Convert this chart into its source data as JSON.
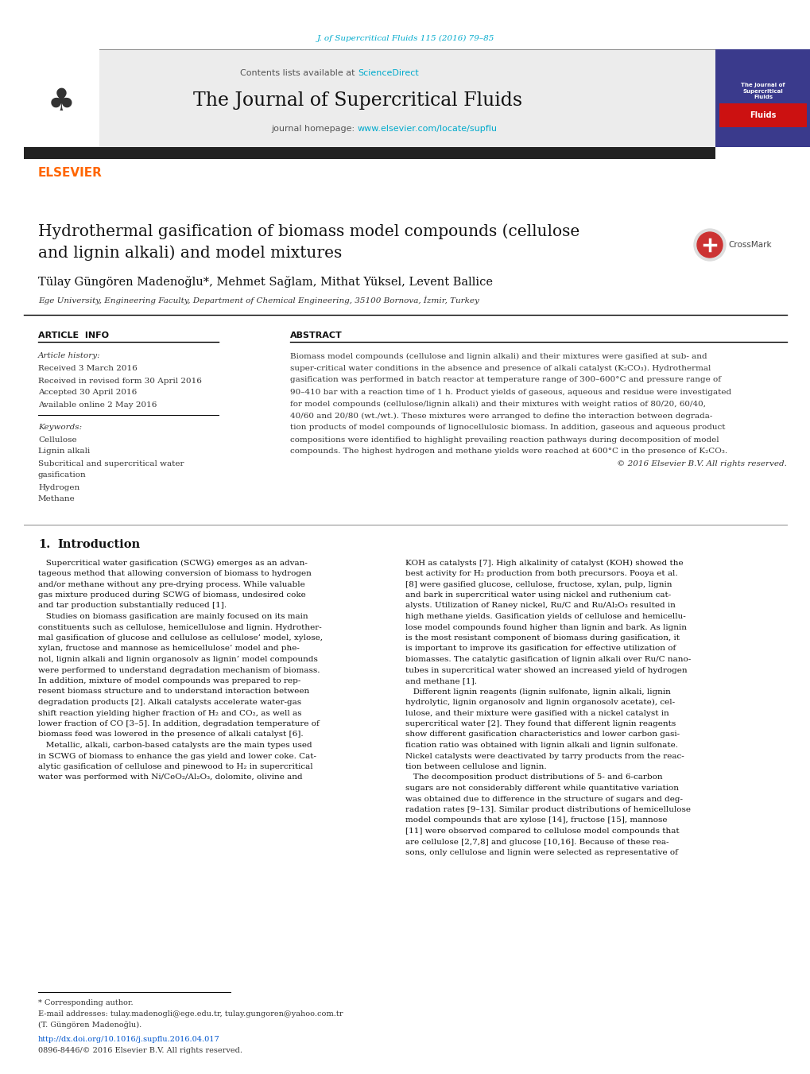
{
  "page_width": 10.2,
  "page_height": 13.51,
  "dpi": 100,
  "background_color": "#ffffff",
  "journal_ref": "J. of Supercritical Fluids 115 (2016) 79–85",
  "journal_ref_color": "#00aacc",
  "header_bg": "#ececec",
  "header_title": "The Journal of Supercritical Fluids",
  "contents_text": "Contents lists available at ",
  "science_direct": "ScienceDirect",
  "science_direct_color": "#00aacc",
  "journal_homepage_text": "journal homepage: ",
  "journal_url": "www.elsevier.com/locate/supflu",
  "journal_url_color": "#00aacc",
  "elsevier_color": "#ff6600",
  "elsevier_text": "ELSEVIER",
  "dark_bar_color": "#222222",
  "article_title_line1": "Hydrothermal gasification of biomass model compounds (cellulose",
  "article_title_line2": "and lignin alkali) and model mixtures",
  "authors": "Tülay Güngören Madenoğlu*, Mehmet Sağlam, Mithat Yüksel, Levent Ballice",
  "affiliation": "Ege University, Engineering Faculty, Department of Chemical Engineering, 35100 Bornova, İzmir, Turkey",
  "article_info_header": "ARTICLE  INFO",
  "abstract_header": "ABSTRACT",
  "article_history_label": "Article history:",
  "received": "Received 3 March 2016",
  "received_revised": "Received in revised form 30 April 2016",
  "accepted": "Accepted 30 April 2016",
  "available_online": "Available online 2 May 2016",
  "keywords_label": "Keywords:",
  "keywords": [
    "Cellulose",
    "Lignin alkali",
    "Subcritical and supercritical water",
    "gasification",
    "Hydrogen",
    "Methane"
  ],
  "abstract_lines": [
    "Biomass model compounds (cellulose and lignin alkali) and their mixtures were gasified at sub- and",
    "super-critical water conditions in the absence and presence of alkali catalyst (K₂CO₃). Hydrothermal",
    "gasification was performed in batch reactor at temperature range of 300–600°C and pressure range of",
    "90–410 bar with a reaction time of 1 h. Product yields of gaseous, aqueous and residue were investigated",
    "for model compounds (cellulose/lignin alkali) and their mixtures with weight ratios of 80/20, 60/40,",
    "40/60 and 20/80 (wt./wt.). These mixtures were arranged to define the interaction between degrada-",
    "tion products of model compounds of lignocellulosic biomass. In addition, gaseous and aqueous product",
    "compositions were identified to highlight prevailing reaction pathways during decomposition of model",
    "compounds. The highest hydrogen and methane yields were reached at 600°C in the presence of K₂CO₃.",
    "© 2016 Elsevier B.V. All rights reserved."
  ],
  "intro_col1_lines": [
    "   Supercritical water gasification (SCWG) emerges as an advan-",
    "tageous method that allowing conversion of biomass to hydrogen",
    "and/or methane without any pre-drying process. While valuable",
    "gas mixture produced during SCWG of biomass, undesired coke",
    "and tar production substantially reduced [1].",
    "   Studies on biomass gasification are mainly focused on its main",
    "constituents such as cellulose, hemicellulose and lignin. Hydrother-",
    "mal gasification of glucose and cellulose as cellulose’ model, xylose,",
    "xylan, fructose and mannose as hemicellulose’ model and phe-",
    "nol, lignin alkali and lignin organosolv as lignin’ model compounds",
    "were performed to understand degradation mechanism of biomass.",
    "In addition, mixture of model compounds was prepared to rep-",
    "resent biomass structure and to understand interaction between",
    "degradation products [2]. Alkali catalysts accelerate water-gas",
    "shift reaction yielding higher fraction of H₂ and CO₂, as well as",
    "lower fraction of CO [3–5]. In addition, degradation temperature of",
    "biomass feed was lowered in the presence of alkali catalyst [6].",
    "   Metallic, alkali, carbon-based catalysts are the main types used",
    "in SCWG of biomass to enhance the gas yield and lower coke. Cat-",
    "alytic gasification of cellulose and pinewood to H₂ in supercritical",
    "water was performed with Ni/CeO₂/Al₂O₃, dolomite, olivine and"
  ],
  "intro_col2_lines": [
    "KOH as catalysts [7]. High alkalinity of catalyst (KOH) showed the",
    "best activity for H₂ production from both precursors. Pooya et al.",
    "[8] were gasified glucose, cellulose, fructose, xylan, pulp, lignin",
    "and bark in supercritical water using nickel and ruthenium cat-",
    "alysts. Utilization of Raney nickel, Ru/C and Ru/Al₂O₃ resulted in",
    "high methane yields. Gasification yields of cellulose and hemicellu-",
    "lose model compounds found higher than lignin and bark. As lignin",
    "is the most resistant component of biomass during gasification, it",
    "is important to improve its gasification for effective utilization of",
    "biomasses. The catalytic gasification of lignin alkali over Ru/C nano-",
    "tubes in supercritical water showed an increased yield of hydrogen",
    "and methane [1].",
    "   Different lignin reagents (lignin sulfonate, lignin alkali, lignin",
    "hydrolytic, lignin organosolv and lignin organosolv acetate), cel-",
    "lulose, and their mixture were gasified with a nickel catalyst in",
    "supercritical water [2]. They found that different lignin reagents",
    "show different gasification characteristics and lower carbon gasi-",
    "fication ratio was obtained with lignin alkali and lignin sulfonate.",
    "Nickel catalysts were deactivated by tarry products from the reac-",
    "tion between cellulose and lignin.",
    "   The decomposition product distributions of 5- and 6-carbon",
    "sugars are not considerably different while quantitative variation",
    "was obtained due to difference in the structure of sugars and deg-",
    "radation rates [9–13]. Similar product distributions of hemicellulose",
    "model compounds that are xylose [14], fructose [15], mannose",
    "[11] were observed compared to cellulose model compounds that",
    "are cellulose [2,7,8] and glucose [10,16]. Because of these rea-",
    "sons, only cellulose and lignin were selected as representative of"
  ],
  "footnote1": "* Corresponding author.",
  "footnote2": "E-mail addresses: tulay.madenogli@ege.edu.tr, tulay.gungoren@yahoo.com.tr",
  "footnote3": "(T. Güngören Madenoğlu).",
  "footnote4": "http://dx.doi.org/10.1016/j.supflu.2016.04.017",
  "footnote5": "0896-8446/© 2016 Elsevier B.V. All rights reserved."
}
